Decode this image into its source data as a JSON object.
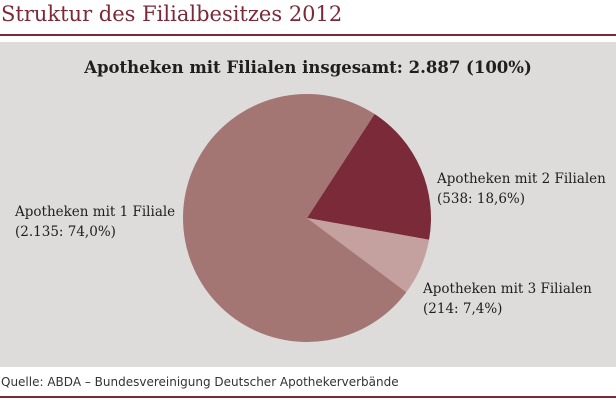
{
  "title": "Struktur des Filialbesitzes 2012",
  "source": "Quelle: ABDA – Bundesvereinigung Deutscher Apothekerverbände",
  "colors": {
    "accent": "#7a2a38",
    "panel": "#dedcda"
  },
  "chart_data": {
    "type": "pie",
    "title": "Apotheken mit Filialen insgesamt: 2.887 (100%)",
    "total": 2887,
    "slices": [
      {
        "label": "Apotheken mit 1 Filiale",
        "value_text": "(2.135: 74,0%)",
        "value": 2135,
        "percent": 74.0,
        "color": "#a37573"
      },
      {
        "label": "Apotheken mit 2 Filialen",
        "value_text": "(538: 18,6%)",
        "value": 538,
        "percent": 18.6,
        "color": "#7a2a38"
      },
      {
        "label": "Apotheken mit 3 Filialen",
        "value_text": "(214: 7,4%)",
        "value": 214,
        "percent": 7.4,
        "color": "#c4a09f"
      }
    ],
    "legend": "none"
  }
}
